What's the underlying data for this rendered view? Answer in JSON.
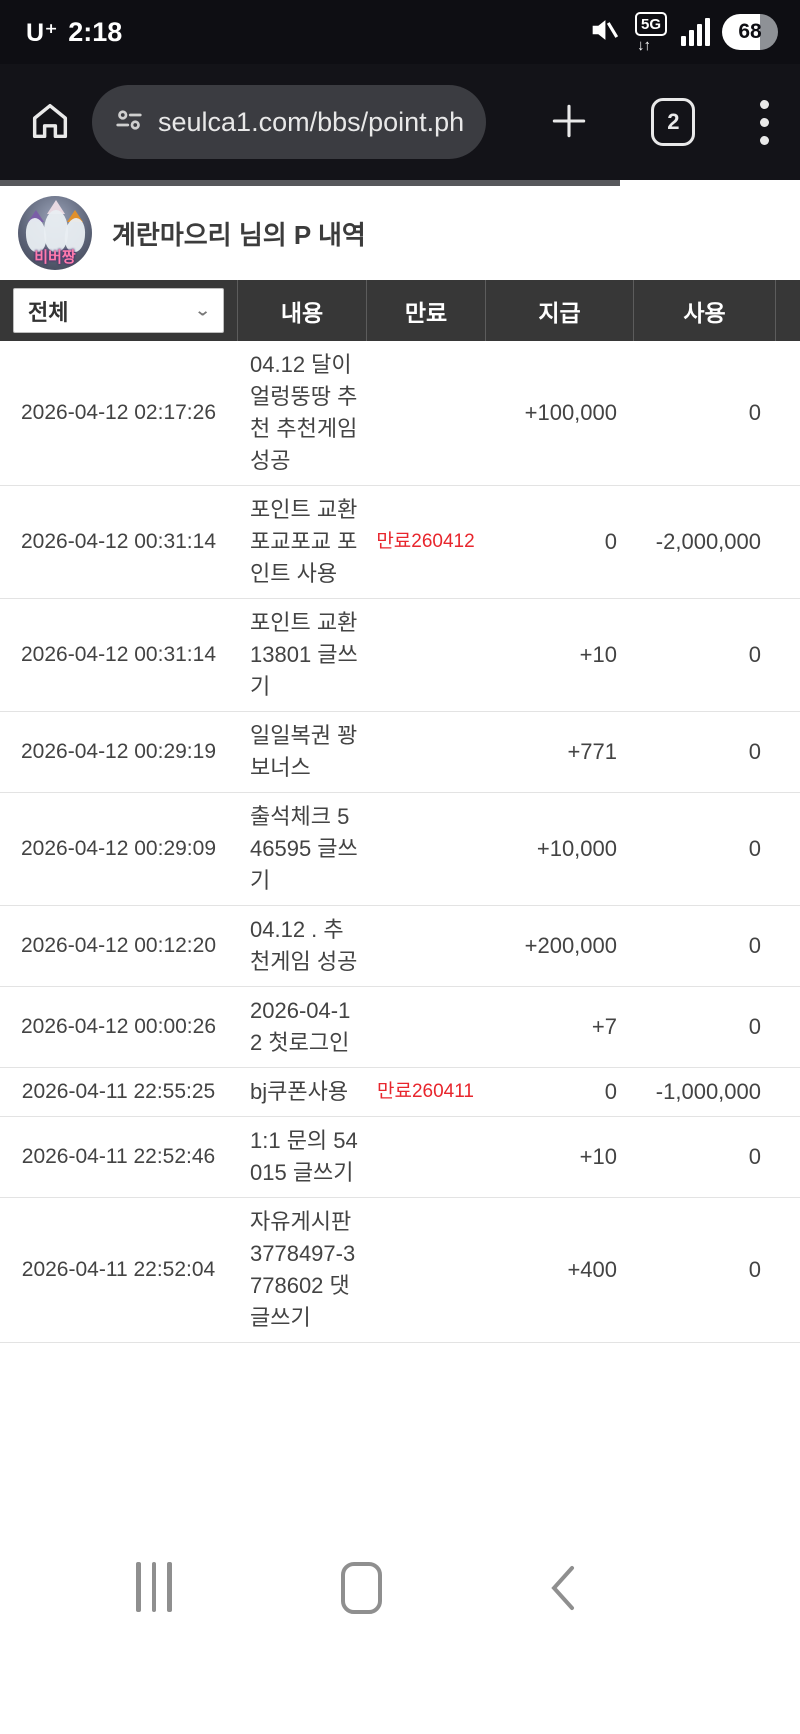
{
  "status_bar": {
    "carrier": "U⁺",
    "time": "2:18",
    "battery_percent": "68",
    "network": "5G",
    "network_arrows": "↓↑"
  },
  "browser": {
    "url": "seulca1.com/bbs/point.ph",
    "tab_count": "2"
  },
  "scroll_indicator": {
    "filled_percent": "77.5%"
  },
  "page_header": {
    "avatar_badge": "비버짱",
    "title": "계란마으리 님의 P 내역"
  },
  "table": {
    "filter_selected": "전체",
    "columns": {
      "content": "내용",
      "expire": "만료",
      "give": "지급",
      "use": "사용"
    },
    "rows": [
      {
        "date": "2026-04-12 02:17:26",
        "content": "04.12 달이 얼렁뚱땅 추천 추천게임 성공",
        "expire": "",
        "give": "+100,000",
        "use": "0"
      },
      {
        "date": "2026-04-12 00:31:14",
        "content": "포인트 교환 포교포교 포인트 사용",
        "expire": "만료260412",
        "give": "0",
        "use": "-2,000,000"
      },
      {
        "date": "2026-04-12 00:31:14",
        "content": "포인트 교환 13801 글쓰기",
        "expire": "",
        "give": "+10",
        "use": "0"
      },
      {
        "date": "2026-04-12 00:29:19",
        "content": "일일복권 꽝 보너스",
        "expire": "",
        "give": "+771",
        "use": "0"
      },
      {
        "date": "2026-04-12 00:29:09",
        "content": "출석체크 546595 글쓰기",
        "expire": "",
        "give": "+10,000",
        "use": "0"
      },
      {
        "date": "2026-04-12 00:12:20",
        "content": "04.12 . 추천게임 성공",
        "expire": "",
        "give": "+200,000",
        "use": "0"
      },
      {
        "date": "2026-04-12 00:00:26",
        "content": "2026-04-12 첫로그인",
        "expire": "",
        "give": "+7",
        "use": "0"
      },
      {
        "date": "2026-04-11 22:55:25",
        "content": "bj쿠폰사용",
        "expire": "만료260411",
        "give": "0",
        "use": "-1,000,000"
      },
      {
        "date": "2026-04-11 22:52:46",
        "content": "1:1 문의 54015 글쓰기",
        "expire": "",
        "give": "+10",
        "use": "0"
      },
      {
        "date": "2026-04-11 22:52:04",
        "content": "자유게시판 3778497-3778602 댓글쓰기",
        "expire": "",
        "give": "+400",
        "use": "0"
      }
    ]
  },
  "colors": {
    "status_bar_bg": "#0e0e13",
    "toolbar_bg": "#131318",
    "url_pill_bg": "#3b3c41",
    "table_header_bg": "#373737",
    "expire_red": "#e8262d",
    "row_border": "#e3e3e3",
    "nav_icon_gray": "#8f8f8f"
  }
}
